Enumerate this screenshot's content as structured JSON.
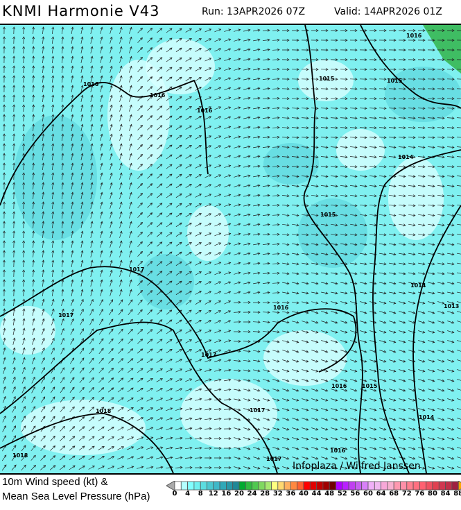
{
  "header": {
    "title": "KNMI Harmonie V43",
    "run": "Run: 13APR2026 07Z",
    "valid": "Valid: 14APR2026 01Z"
  },
  "map": {
    "background_color": "#7ff0f0",
    "credit": "Infoplaza / Wilfred Janssen",
    "isobar_labels": [
      "1016",
      "1016",
      "1016",
      "1015",
      "1016",
      "1015",
      "1014",
      "1015",
      "1017",
      "1017",
      "1016",
      "1014",
      "1017",
      "1016",
      "1015",
      "1018",
      "1017",
      "1014",
      "1018",
      "1016",
      "1017",
      "1013"
    ]
  },
  "legend": {
    "line1": "10m Wind speed (kt) &",
    "line2": "Mean Sea Level Pressure (hPa)",
    "ticks": [
      "0",
      "4",
      "8",
      "12",
      "16",
      "20",
      "24",
      "28",
      "32",
      "36",
      "40",
      "44",
      "48",
      "52",
      "56",
      "60",
      "64",
      "68",
      "72",
      "76",
      "80",
      "84",
      "88"
    ],
    "colors": [
      "#ffffff",
      "#b4ffff",
      "#80ffff",
      "#70f0f0",
      "#5cdde0",
      "#4cc8d0",
      "#40b8c8",
      "#30a8b8",
      "#2898a8",
      "#208898",
      "#00aa30",
      "#30bb40",
      "#50c850",
      "#80d860",
      "#a8e870",
      "#ffff80",
      "#ffd870",
      "#ffb060",
      "#ff8840",
      "#ff6030",
      "#ff0000",
      "#e00000",
      "#c00000",
      "#a00000",
      "#700000",
      "#b000ff",
      "#b820ff",
      "#c040f0",
      "#c860f0",
      "#d880f8",
      "#f0b0f8",
      "#f0b8f0",
      "#f8a8d8",
      "#f8b0d0",
      "#ff98b0",
      "#ff90a8",
      "#ff8090",
      "#ff7080",
      "#ff6070",
      "#f05060",
      "#e04050",
      "#d03850",
      "#c03048",
      "#a02040"
    ],
    "under_color": "#aaaaaa",
    "over_color": "#ffa500"
  }
}
